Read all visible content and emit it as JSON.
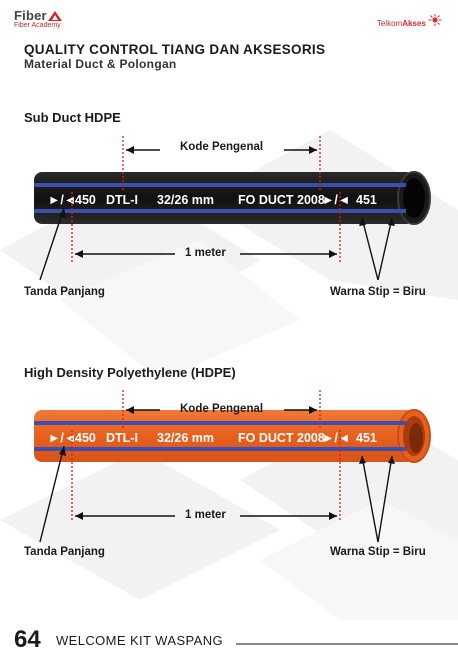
{
  "header": {
    "brand_left": "Fiber",
    "brand_left_sub": "Fiber Academy",
    "brand_right_a": "Telkom",
    "brand_right_b": "Akses",
    "title": "QUALITY CONTROL TIANG DAN AKSESORIS",
    "subtitle": "Material Duct & Polongan"
  },
  "sections": [
    {
      "heading": "Sub Duct HDPE",
      "pipe_color": "#1a1a1a",
      "stripe_color": "#3a4fb0",
      "code_label": "Kode Pengenal",
      "print_start": "450",
      "print_mid1": "DTL-I",
      "print_mid2": "32/26 mm",
      "print_mid3": "FO DUCT 2008",
      "print_end": "451",
      "meter_label": "1 meter",
      "left_label": "Tanda Panjang",
      "right_label": "Warna Stip = Biru"
    },
    {
      "heading": "High Density Polyethylene (HDPE)",
      "pipe_color": "#ee6a28",
      "stripe_color": "#3a4fb0",
      "code_label": "Kode Pengenal",
      "print_start": "450",
      "print_mid1": "DTL-I",
      "print_mid2": "32/26 mm",
      "print_mid3": "FO DUCT 2008",
      "print_end": "451",
      "meter_label": "1 meter",
      "left_label": "Tanda Panjang",
      "right_label": "Warna Stip = Biru"
    }
  ],
  "footer": {
    "page_number": "64",
    "text": "WELCOME KIT WASPANG"
  }
}
